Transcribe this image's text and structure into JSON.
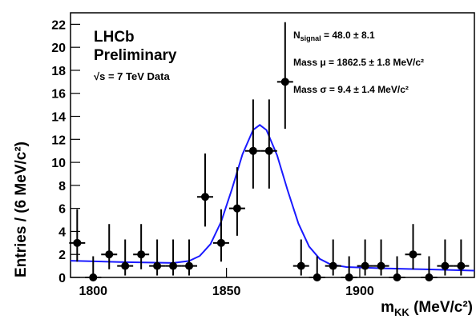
{
  "chart_data": {
    "type": "errorbar",
    "x_label": {
      "main": "m",
      "sub": "KK",
      "rest": " (MeV/c²)"
    },
    "y_label": "Entries / (6 MeV/c²)",
    "annotations": {
      "experiment": "LHCb",
      "status": "Preliminary",
      "energy": "√s = 7 TeV Data",
      "nsignal": {
        "main": "N",
        "sub": "signal",
        "rest": " = 48.0 ± 8.1"
      },
      "mass_mu": "Mass μ = 1862.5 ± 1.8 MeV/c²",
      "mass_sigma": "Mass σ = 9.4 ± 1.4 MeV/c²"
    },
    "xlim": [
      1791.5,
      1943
    ],
    "xticks": [
      1800,
      1850,
      1900
    ],
    "ylim": [
      0,
      23
    ],
    "yticks": [
      0,
      2,
      4,
      6,
      8,
      10,
      12,
      14,
      16,
      18,
      20,
      22
    ],
    "series": [
      {
        "color": "#000000",
        "xerr": 3,
        "x": [
          1794,
          1800,
          1806,
          1812,
          1818,
          1824,
          1830,
          1836,
          1842,
          1848,
          1854,
          1860,
          1866,
          1872,
          1878,
          1884,
          1890,
          1896,
          1902,
          1908,
          1914,
          1920,
          1926,
          1932,
          1938
        ],
        "values": [
          3,
          0,
          2,
          1,
          2,
          1,
          1,
          1,
          7,
          3,
          6,
          11,
          11,
          17,
          1,
          0,
          1,
          0,
          1,
          1,
          0,
          2,
          0,
          1,
          1
        ],
        "err_low": [
          1.63,
          0,
          1.29,
          0.83,
          1.29,
          0.83,
          0.83,
          0.83,
          2.58,
          1.63,
          2.38,
          3.28,
          3.28,
          4.08,
          0.83,
          0,
          0.83,
          0,
          0.83,
          0.83,
          0,
          1.29,
          0,
          0.83,
          0.83
        ],
        "err_high": [
          2.92,
          1.84,
          2.64,
          2.3,
          2.64,
          2.3,
          2.3,
          2.3,
          3.77,
          2.92,
          3.58,
          4.47,
          4.47,
          5.18,
          2.3,
          1.84,
          2.3,
          1.84,
          2.3,
          2.3,
          1.84,
          2.64,
          1.84,
          2.3,
          2.3
        ]
      }
    ],
    "fit": {
      "color": "#1a1aff",
      "x": [
        1791.5,
        1810,
        1830,
        1836,
        1840,
        1844,
        1848,
        1852,
        1856,
        1860,
        1862.5,
        1865,
        1869,
        1873,
        1877,
        1881,
        1885,
        1889,
        1895,
        1910,
        1925,
        1943
      ],
      "values": [
        1.45,
        1.34,
        1.26,
        1.43,
        1.87,
        2.9,
        4.84,
        7.65,
        10.7,
        12.83,
        13.25,
        12.81,
        10.62,
        7.53,
        4.68,
        2.69,
        1.61,
        1.13,
        0.9,
        0.78,
        0.7,
        0.59
      ]
    }
  }
}
